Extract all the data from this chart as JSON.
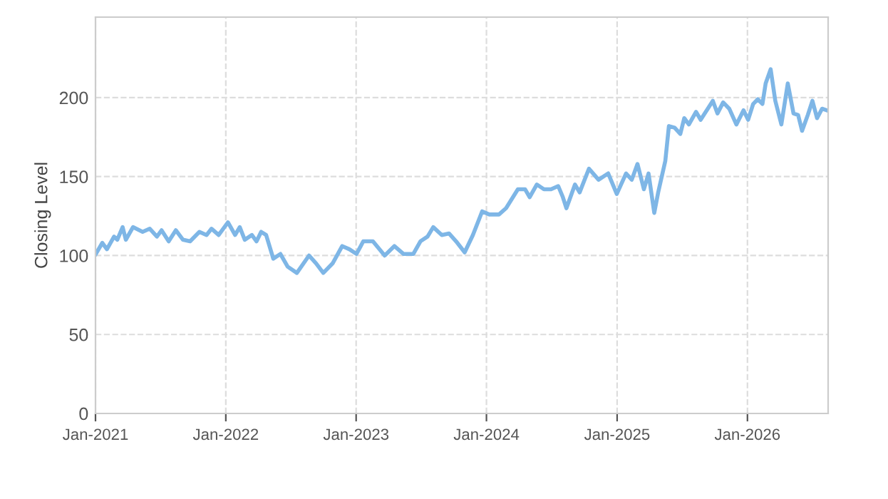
{
  "chart_data": {
    "type": "line",
    "ylabel": "Closing Level",
    "x": [
      "2021-01-02",
      "2021-01-20",
      "2021-02-02",
      "2021-02-22",
      "2021-03-03",
      "2021-03-18",
      "2021-03-27",
      "2021-04-16",
      "2021-05-13",
      "2021-06-02",
      "2021-06-22",
      "2021-07-05",
      "2021-07-25",
      "2021-08-14",
      "2021-09-03",
      "2021-09-23",
      "2021-10-19",
      "2021-11-08",
      "2021-11-22",
      "2021-12-12",
      "2022-01-07",
      "2022-01-27",
      "2022-02-09",
      "2022-02-23",
      "2022-03-15",
      "2022-03-28",
      "2022-04-10",
      "2022-04-24",
      "2022-05-14",
      "2022-06-03",
      "2022-06-23",
      "2022-07-19",
      "2022-08-22",
      "2022-09-11",
      "2022-10-01",
      "2022-10-27",
      "2022-11-23",
      "2022-12-13",
      "2023-01-02",
      "2023-01-21",
      "2023-02-17",
      "2023-03-22",
      "2023-04-18",
      "2023-05-14",
      "2023-06-10",
      "2023-06-30",
      "2023-07-20",
      "2023-08-05",
      "2023-08-29",
      "2023-09-18",
      "2023-10-08",
      "2023-11-01",
      "2023-11-24",
      "2023-12-20",
      "2024-01-09",
      "2024-02-05",
      "2024-02-25",
      "2024-03-29",
      "2024-04-18",
      "2024-05-01",
      "2024-05-21",
      "2024-06-10",
      "2024-06-30",
      "2024-07-20",
      "2024-08-02",
      "2024-08-12",
      "2024-09-05",
      "2024-09-18",
      "2024-10-14",
      "2024-11-10",
      "2024-12-07",
      "2024-12-31",
      "2025-01-26",
      "2025-02-11",
      "2025-02-27",
      "2025-03-17",
      "2025-03-30",
      "2025-04-15",
      "2025-04-26",
      "2025-05-16",
      "2025-05-26",
      "2025-06-11",
      "2025-06-27",
      "2025-07-08",
      "2025-07-21",
      "2025-08-10",
      "2025-08-23",
      "2025-09-26",
      "2025-10-09",
      "2025-10-25",
      "2025-11-11",
      "2025-12-01",
      "2025-12-21",
      "2026-01-03",
      "2026-01-17",
      "2026-01-30",
      "2026-02-12",
      "2026-02-21",
      "2026-03-07",
      "2026-03-20",
      "2026-04-06",
      "2026-04-24",
      "2026-05-10",
      "2026-05-23",
      "2026-06-03",
      "2026-06-19",
      "2026-07-02",
      "2026-07-15",
      "2026-07-29",
      "2026-08-11"
    ],
    "series": [
      {
        "color": "#7eb6e6",
        "values": [
          101,
          108,
          104,
          112,
          110,
          118,
          110,
          118,
          115,
          117,
          112,
          116,
          109,
          116,
          110,
          109,
          115,
          113,
          117,
          113,
          121,
          113,
          118,
          110,
          113,
          109,
          115,
          113,
          98,
          101,
          93,
          89,
          100,
          95,
          89,
          95,
          106,
          104,
          101,
          109,
          109,
          100,
          106,
          101,
          101,
          109,
          112,
          118,
          113,
          114,
          109,
          102,
          113,
          128,
          126,
          126,
          130,
          142,
          142,
          137,
          145,
          142,
          142,
          144,
          137,
          130,
          145,
          140,
          155,
          148,
          152,
          139,
          152,
          148,
          158,
          142,
          152,
          127,
          140,
          160,
          182,
          181,
          177,
          187,
          183,
          191,
          186,
          198,
          190,
          197,
          193,
          183,
          192,
          186,
          196,
          199,
          196,
          209,
          218,
          198,
          183,
          209,
          190,
          189,
          179,
          189,
          198,
          187,
          193,
          192
        ]
      }
    ],
    "xlim": [
      "2021-01-01",
      "2026-08-15"
    ],
    "xticks": [
      {
        "value": "2021-01-01",
        "label": "Jan-2021"
      },
      {
        "value": "2022-01-01",
        "label": "Jan-2022"
      },
      {
        "value": "2023-01-01",
        "label": "Jan-2023"
      },
      {
        "value": "2024-01-01",
        "label": "Jan-2024"
      },
      {
        "value": "2025-01-01",
        "label": "Jan-2025"
      },
      {
        "value": "2026-01-01",
        "label": "Jan-2026"
      }
    ],
    "ylim": [
      0,
      251
    ],
    "yticks": [
      0,
      50,
      100,
      150,
      200
    ],
    "grid": true,
    "line_style": "solid",
    "marker": "none"
  }
}
